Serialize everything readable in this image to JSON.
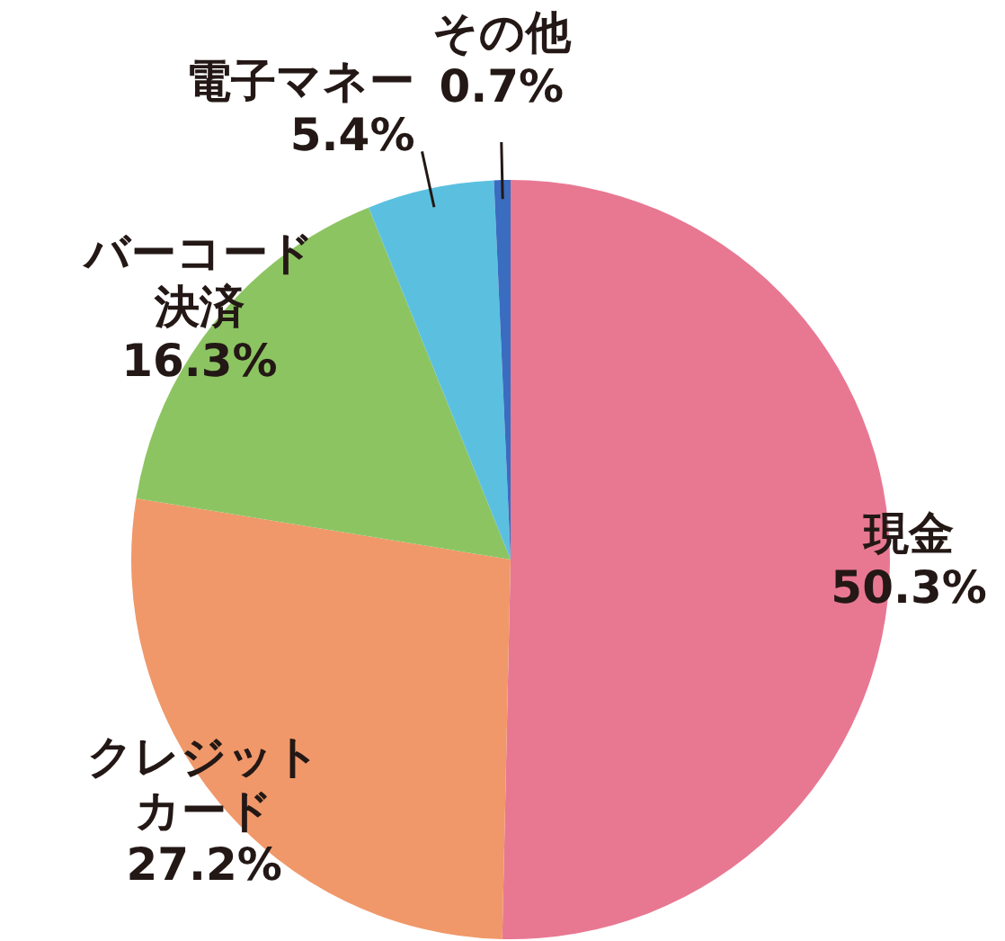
{
  "chart_data": {
    "type": "pie",
    "categories": [
      "現金",
      "クレジットカード",
      "バーコード決済",
      "電子マネー",
      "その他"
    ],
    "values": [
      50.3,
      27.2,
      16.3,
      5.4,
      0.7
    ],
    "colors": [
      "#e87892",
      "#f0986a",
      "#8cc462",
      "#5bc0e0",
      "#3a6cc0"
    ],
    "value_labels": [
      "50.3%",
      "27.2%",
      "16.3%",
      "5.4%",
      "0.7%"
    ],
    "legend": false
  }
}
